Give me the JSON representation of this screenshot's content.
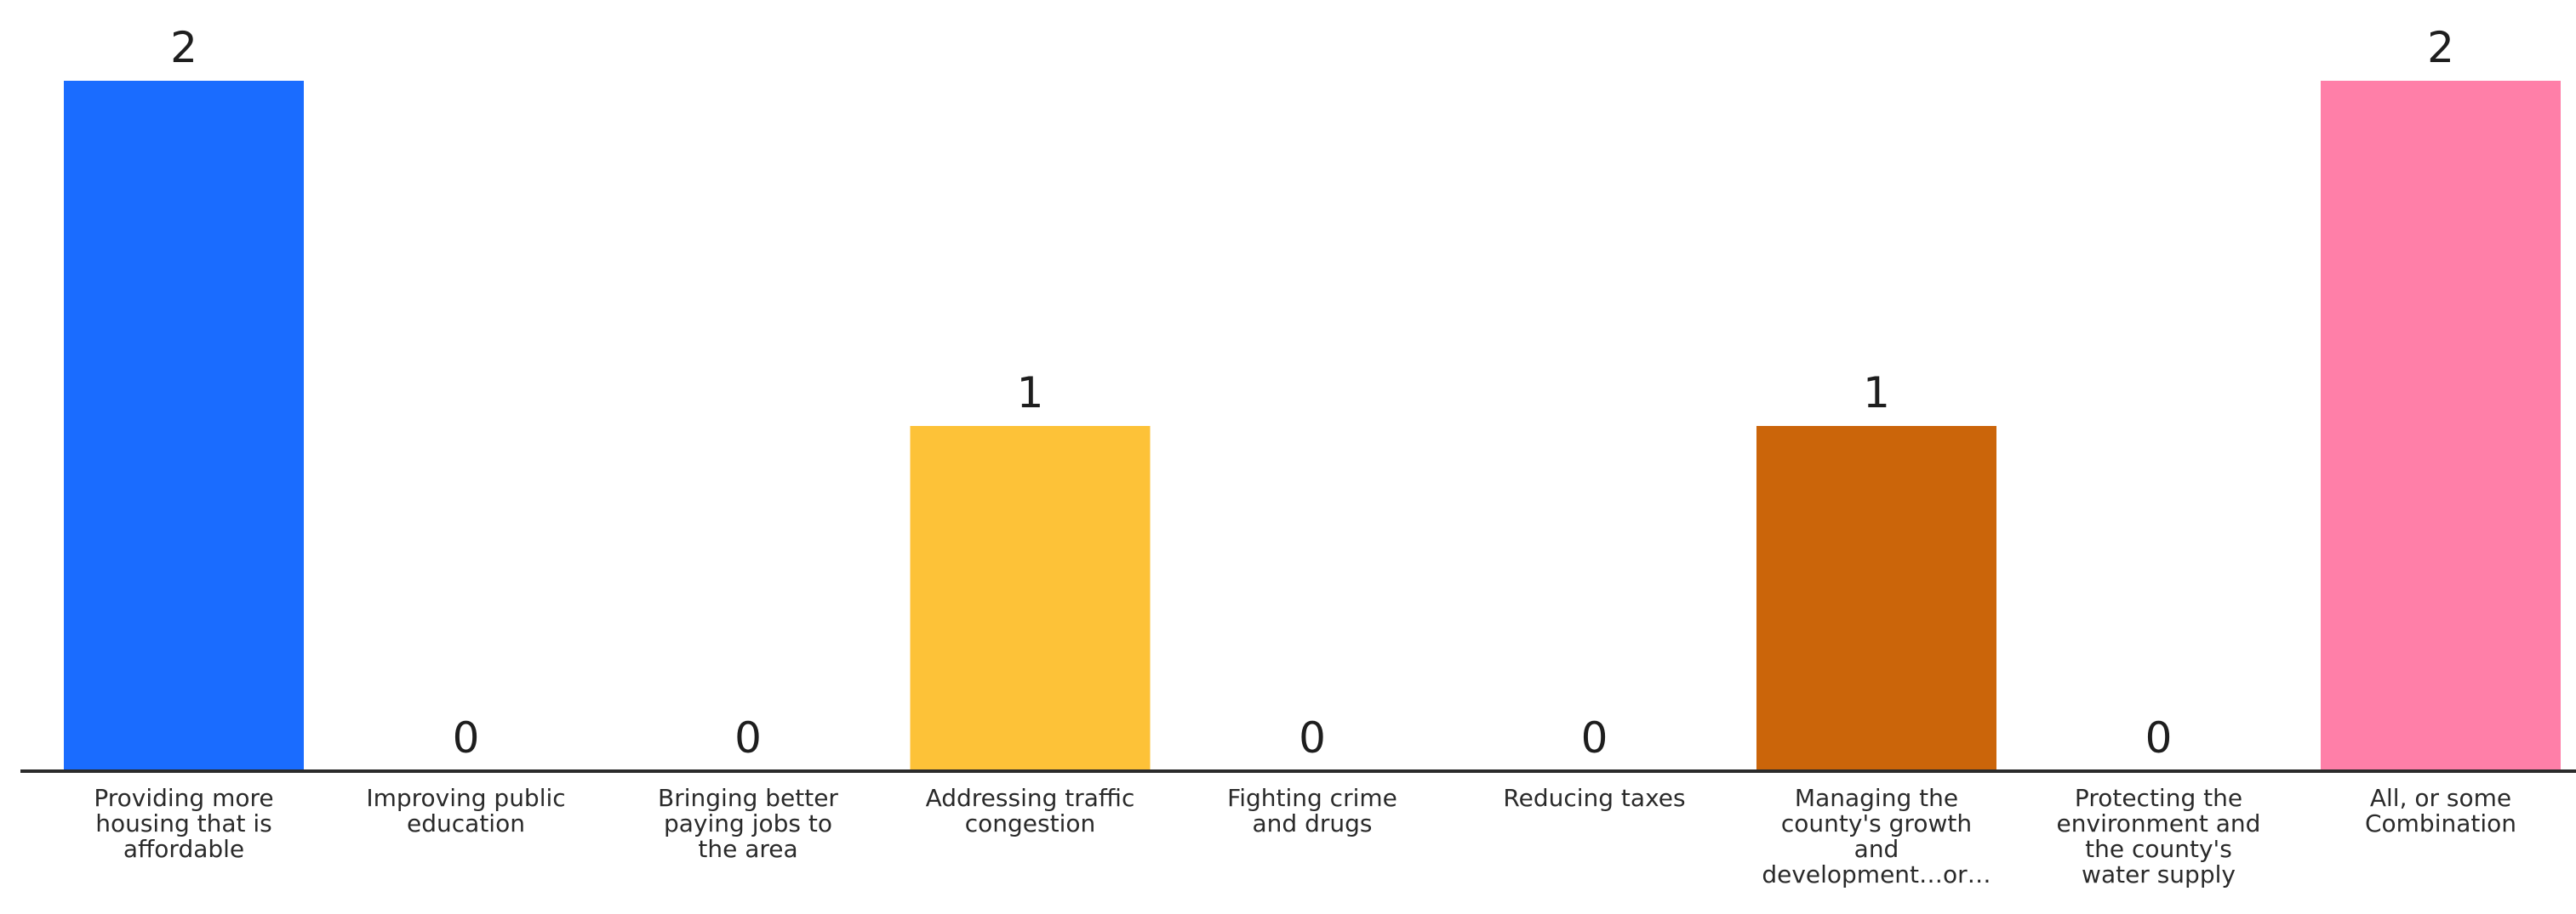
{
  "chart_data": {
    "type": "bar",
    "categories": [
      "Providing more housing that is affordable",
      "Improving public education",
      "Bringing better paying jobs to the area",
      "Addressing traffic congestion",
      "Fighting crime and drugs",
      "Reducing taxes",
      "Managing the county's growth and development…or…",
      "Protecting the environment and the county's water supply",
      "All, or some Combination"
    ],
    "category_label_lines": [
      [
        "Providing more",
        "housing that is",
        "affordable"
      ],
      [
        "Improving public",
        "education"
      ],
      [
        "Bringing better",
        "paying jobs to",
        "the area"
      ],
      [
        "Addressing traffic",
        "congestion"
      ],
      [
        "Fighting crime",
        "and drugs"
      ],
      [
        "Reducing taxes"
      ],
      [
        "Managing the",
        "county's growth",
        "and",
        "development…or…"
      ],
      [
        "Protecting the",
        "environment and",
        "the county's",
        "water supply"
      ],
      [
        "All, or some",
        "Combination"
      ]
    ],
    "values": [
      2,
      0,
      0,
      1,
      0,
      0,
      1,
      0,
      2
    ],
    "colors": [
      "#1a6cff",
      "#1a6cff",
      "#1a6cff",
      "#fdc238",
      "#fdc238",
      "#fdc238",
      "#cb650a",
      "#cb650a",
      "#ff7fa8"
    ],
    "ylim": [
      0,
      2
    ],
    "grid": false,
    "legend": "none",
    "title": "",
    "xlabel": "",
    "ylabel": ""
  }
}
